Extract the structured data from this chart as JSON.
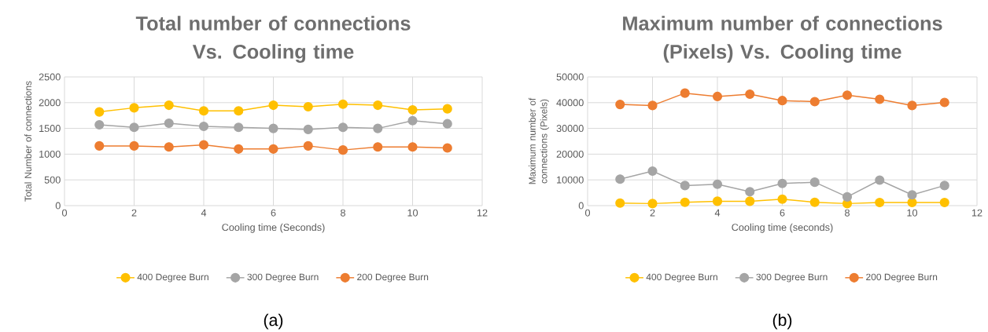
{
  "chart_data": [
    {
      "type": "line",
      "title": "Total number of connections Vs. Cooling time",
      "xlabel": "Cooling time (Seconds)",
      "ylabel": "Total Number of connections",
      "x": [
        1,
        2,
        3,
        4,
        5,
        6,
        7,
        8,
        9,
        10,
        11
      ],
      "series": [
        {
          "name": "400 Degree Burn",
          "color": "#ffc000",
          "values": [
            1820,
            1900,
            1950,
            1840,
            1840,
            1950,
            1920,
            1970,
            1950,
            1860,
            1880
          ]
        },
        {
          "name": "300 Degree Burn",
          "color": "#a5a5a5",
          "values": [
            1570,
            1520,
            1600,
            1540,
            1520,
            1500,
            1480,
            1520,
            1500,
            1650,
            1590
          ]
        },
        {
          "name": "200 Degree Burn",
          "color": "#ed7d31",
          "values": [
            1160,
            1160,
            1140,
            1180,
            1100,
            1100,
            1160,
            1080,
            1140,
            1140,
            1120
          ]
        }
      ],
      "xlim": [
        0,
        12
      ],
      "xticks": [
        0,
        2,
        4,
        6,
        8,
        10,
        12
      ],
      "ylim": [
        0,
        2500
      ],
      "yticks": [
        0,
        500,
        1000,
        1500,
        2000,
        2500
      ],
      "grid": true,
      "legend": "bottom",
      "marker": "circle",
      "line_style": "solid",
      "annotations": [
        "(a)"
      ]
    },
    {
      "type": "line",
      "title": "Maximum number of connections (Pixels) Vs. Cooling time",
      "xlabel": "Cooling time (seconds)",
      "ylabel": "Maximum number of connections (Pixels)",
      "x": [
        1,
        2,
        3,
        4,
        5,
        6,
        7,
        8,
        9,
        10,
        11
      ],
      "series": [
        {
          "name": "400 Degree Burn",
          "color": "#ffc000",
          "values": [
            1000,
            800,
            1300,
            1700,
            1700,
            2500,
            1300,
            800,
            1200,
            1200,
            1200
          ]
        },
        {
          "name": "300 Degree Burn",
          "color": "#a5a5a5",
          "values": [
            10300,
            13400,
            7800,
            8300,
            5400,
            8600,
            9100,
            3400,
            9900,
            4200,
            7800
          ]
        },
        {
          "name": "200 Degree Burn",
          "color": "#ed7d31",
          "values": [
            39300,
            38900,
            43700,
            42400,
            43300,
            40800,
            40400,
            42900,
            41300,
            38900,
            40100
          ]
        }
      ],
      "xlim": [
        0,
        12
      ],
      "xticks": [
        0,
        2,
        4,
        6,
        8,
        10,
        12
      ],
      "ylim": [
        0,
        50000
      ],
      "yticks": [
        0,
        10000,
        20000,
        30000,
        40000,
        50000
      ],
      "grid": true,
      "legend": "bottom",
      "marker": "circle",
      "line_style": "solid",
      "annotations": [
        "(b)"
      ]
    }
  ]
}
